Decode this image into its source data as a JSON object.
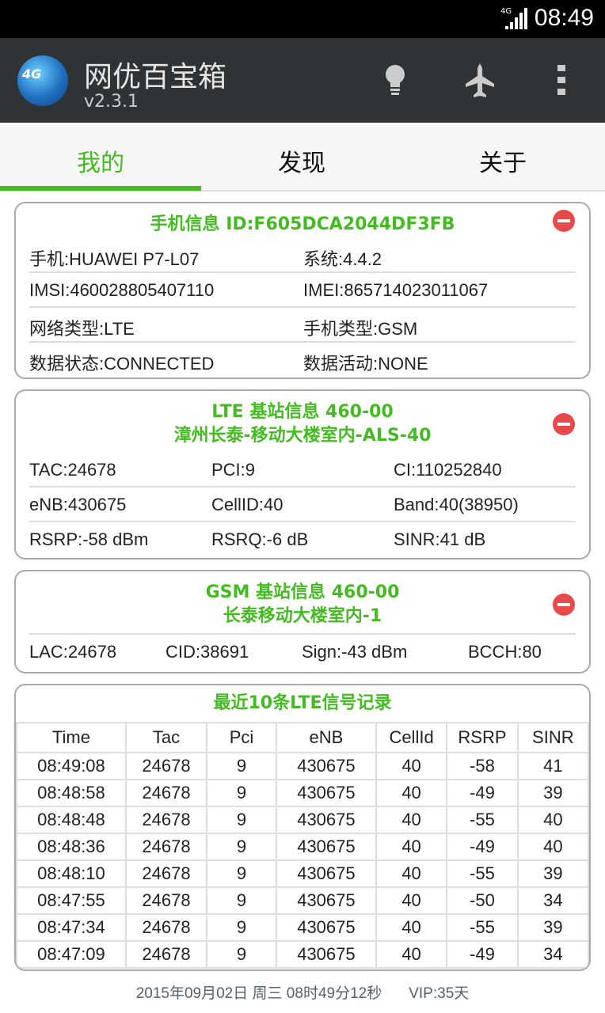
{
  "status_bar": {
    "network": "4G",
    "time": "08:49"
  },
  "app_bar": {
    "title": "网优百宝箱",
    "version": "v2.3.1",
    "logo_text": "4G",
    "icons": [
      "lightbulb-icon",
      "airplane-icon",
      "overflow-menu-icon"
    ]
  },
  "tabs": [
    {
      "label": "我的",
      "active": true
    },
    {
      "label": "发现"
    },
    {
      "label": "关于"
    }
  ],
  "phone_info": {
    "title": "手机信息  ID:F605DCA2044DF3FB",
    "rows": [
      [
        "手机:HUAWEI P7-L07",
        "系统:4.4.2"
      ],
      [
        "IMSI:460028805407110",
        "IMEI:865714023011067"
      ],
      [
        "网络类型:LTE",
        "手机类型:GSM"
      ],
      [
        "数据状态:CONNECTED",
        "数据活动:NONE"
      ]
    ]
  },
  "lte_info": {
    "title1": "LTE 基站信息 460-00",
    "title2": "漳州长泰-移动大楼室内-ALS-40",
    "rows": [
      [
        "TAC:24678",
        "PCI:9",
        "CI:110252840"
      ],
      [
        "eNB:430675",
        "CellID:40",
        "Band:40(38950)"
      ],
      [
        "RSRP:-58 dBm",
        "RSRQ:-6 dB",
        "SINR:41 dB"
      ]
    ]
  },
  "gsm_info": {
    "title1": "GSM 基站信息 460-00",
    "title2": "长泰移动大楼室内-1",
    "row": [
      "LAC:24678",
      "CID:38691",
      "Sign:-43 dBm",
      "BCCH:80"
    ]
  },
  "lte_log": {
    "title": "最近10条LTE信号记录",
    "headers": [
      "Time",
      "Tac",
      "Pci",
      "eNB",
      "CellId",
      "RSRP",
      "SINR"
    ],
    "rows": [
      [
        "08:49:08",
        "24678",
        "9",
        "430675",
        "40",
        "-58",
        "41"
      ],
      [
        "08:48:58",
        "24678",
        "9",
        "430675",
        "40",
        "-49",
        "39"
      ],
      [
        "08:48:48",
        "24678",
        "9",
        "430675",
        "40",
        "-55",
        "40"
      ],
      [
        "08:48:36",
        "24678",
        "9",
        "430675",
        "40",
        "-49",
        "40"
      ],
      [
        "08:48:10",
        "24678",
        "9",
        "430675",
        "40",
        "-55",
        "39"
      ],
      [
        "08:47:55",
        "24678",
        "9",
        "430675",
        "40",
        "-50",
        "34"
      ],
      [
        "08:47:34",
        "24678",
        "9",
        "430675",
        "40",
        "-55",
        "39"
      ],
      [
        "08:47:09",
        "24678",
        "9",
        "430675",
        "40",
        "-49",
        "34"
      ]
    ]
  },
  "footer": {
    "datetime": "2015年09月02日 周三 08时49分12秒",
    "vip": "VIP:35天"
  },
  "colors": {
    "accent": "#44bb22",
    "appbar": "#2f3336",
    "remove": "#e84a4a"
  }
}
